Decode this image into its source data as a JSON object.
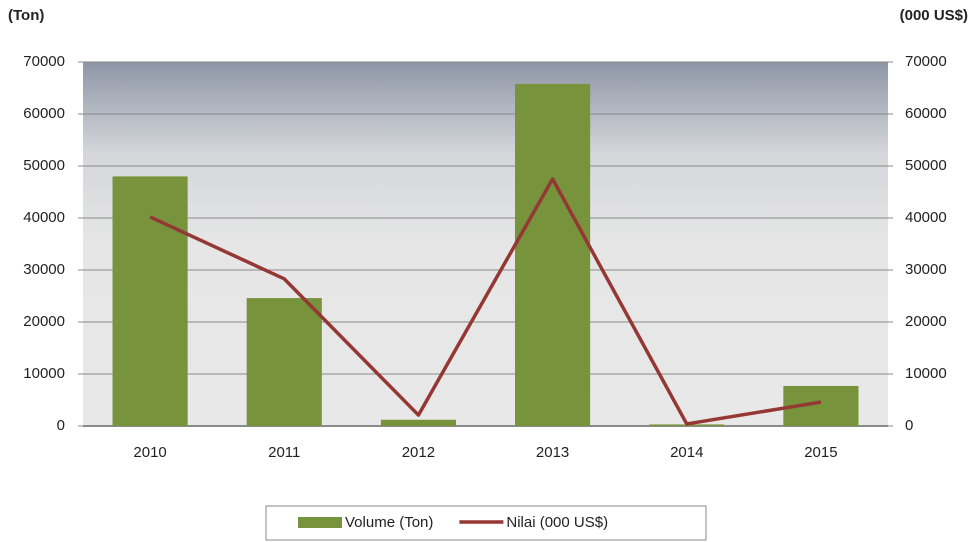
{
  "chart_data": {
    "type": "combo",
    "ylabel": "(Ton)",
    "y2label": "(000 US$)",
    "categories": [
      "2010",
      "2011",
      "2012",
      "2013",
      "2014",
      "2015"
    ],
    "series": [
      {
        "name": "Volume (Ton)",
        "type": "bar",
        "color": "#77933c",
        "values": [
          48000,
          24600,
          1200,
          65800,
          300,
          7700
        ]
      },
      {
        "name": "Nilai (000 US$)",
        "type": "line",
        "axis": "y2",
        "color": "#953735",
        "values": [
          40200,
          28300,
          2100,
          47500,
          400,
          4600
        ]
      }
    ],
    "ylim": [
      0,
      70000
    ],
    "yticks": [
      0,
      10000,
      20000,
      30000,
      40000,
      50000,
      60000,
      70000
    ],
    "y2lim": [
      0,
      70000
    ],
    "y2ticks": [
      0,
      10000,
      20000,
      30000,
      40000,
      50000,
      60000,
      70000
    ],
    "grid": true,
    "legend": "bottom"
  }
}
